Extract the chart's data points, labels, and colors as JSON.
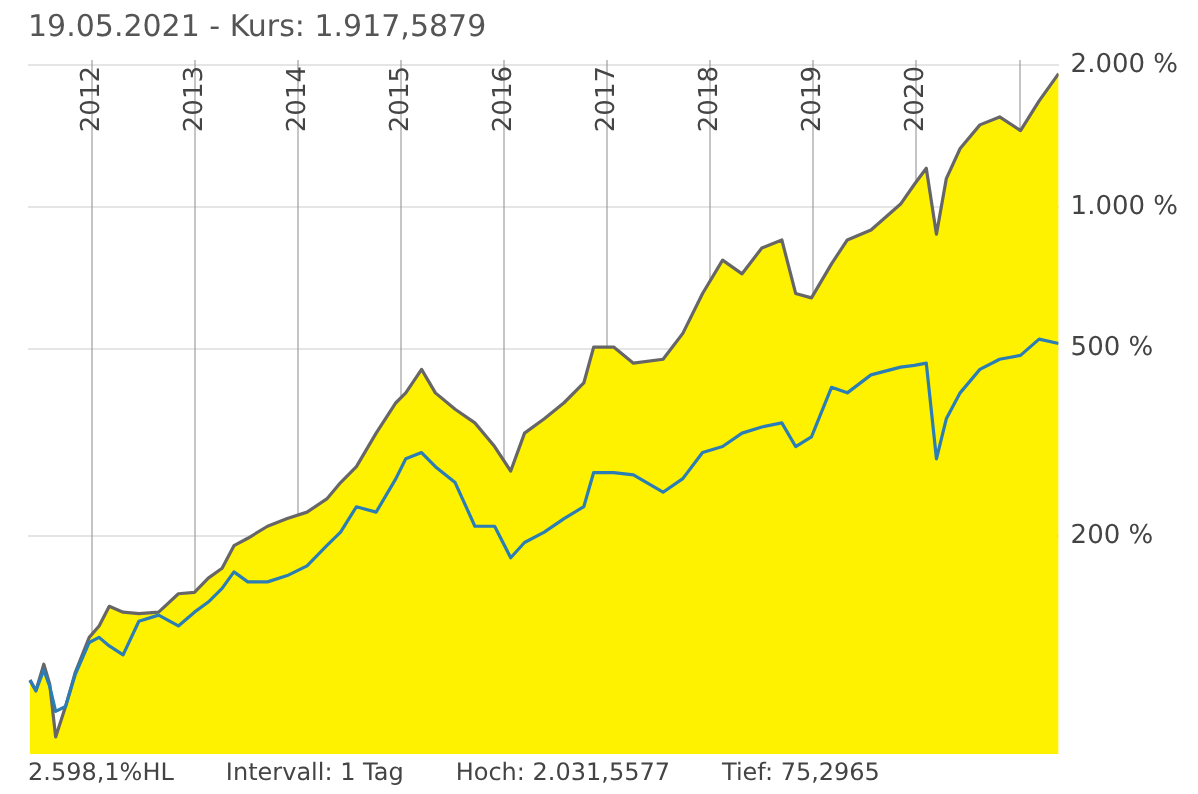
{
  "chart_data": {
    "type": "line",
    "title": "19.05.2021  -  Kurs: 1.917,5879",
    "annotations": [
      "2.598,1%HL",
      "Intervall: 1 Tag",
      "Hoch: 2.031,5577",
      "Tief: 75,2965"
    ],
    "x": [
      "2011-05-26",
      "2011-06-16",
      "2011-07-14",
      "2011-08-04",
      "2011-08-25",
      "2011-09-29",
      "2011-11-03",
      "2011-12-22",
      "2012-01-26",
      "2012-03-02",
      "2012-04-20",
      "2012-06-15",
      "2012-08-24",
      "2012-11-02",
      "2012-12-29",
      "2013-02-16",
      "2013-04-06",
      "2013-05-18",
      "2013-07-06",
      "2013-09-14",
      "2013-11-23",
      "2014-02-01",
      "2014-04-12",
      "2014-05-31",
      "2014-07-26",
      "2014-10-04",
      "2014-12-13",
      "2015-01-17",
      "2015-03-14",
      "2015-05-02",
      "2015-07-11",
      "2015-09-19",
      "2015-11-28",
      "2016-01-24",
      "2016-03-13",
      "2016-05-22",
      "2016-07-31",
      "2016-10-09",
      "2016-11-13",
      "2017-01-23",
      "2017-04-03",
      "2017-07-17",
      "2017-09-25",
      "2017-12-04",
      "2018-02-13",
      "2018-04-23",
      "2018-07-02",
      "2018-09-11",
      "2018-10-30",
      "2018-12-25",
      "2019-03-06",
      "2019-05-01",
      "2019-07-24",
      "2019-11-06",
      "2019-12-25",
      "2020-02-05",
      "2020-03-12",
      "2020-04-16",
      "2020-06-04",
      "2020-08-13",
      "2020-10-22",
      "2021-01-04",
      "2021-03-11",
      "2021-05-19"
    ],
    "series": [
      {
        "type": "area",
        "color": "#666666",
        "values": [
          99,
          94,
          107,
          97,
          75,
          87,
          103,
          122,
          129,
          142,
          138,
          137,
          138,
          151,
          152,
          163,
          171,
          191,
          198,
          210,
          218,
          225,
          240,
          260,
          281,
          331,
          384,
          403,
          452,
          403,
          372,
          348,
          310,
          275,
          331,
          355,
          384,
          423,
          504,
          504,
          466,
          475,
          539,
          655,
          771,
          721,
          818,
          851,
          655,
          641,
          757,
          851,
          893,
          1014,
          1117,
          1208,
          875,
          1148,
          1330,
          1493,
          1552,
          1452,
          1679,
          1918
        ]
      },
      {
        "type": "line",
        "color": "#2a7db5",
        "values": [
          99,
          94,
          104,
          96,
          85,
          87,
          102,
          119,
          122,
          117,
          112,
          132,
          136,
          129,
          138,
          145,
          155,
          168,
          160,
          160,
          165,
          173,
          191,
          204,
          231,
          225,
          265,
          292,
          301,
          281,
          260,
          210,
          210,
          180,
          194,
          204,
          218,
          231,
          273,
          273,
          270,
          248,
          265,
          301,
          310,
          331,
          341,
          348,
          310,
          325,
          414,
          403,
          440,
          457,
          461,
          466,
          292,
          355,
          403,
          452,
          475,
          484,
          524,
          513
        ]
      }
    ],
    "xlim": [
      "2011-05-19",
      "2021-05-19"
    ],
    "xticks": [
      {
        "value": "2012",
        "label": "2012"
      },
      {
        "value": "2013",
        "label": "2013"
      },
      {
        "value": "2014",
        "label": "2014"
      },
      {
        "value": "2015",
        "label": "2015"
      },
      {
        "value": "2016",
        "label": "2016"
      },
      {
        "value": "2017",
        "label": "2017"
      },
      {
        "value": "2018",
        "label": "2018"
      },
      {
        "value": "2019",
        "label": "2019"
      },
      {
        "value": "2020",
        "label": "2020"
      },
      {
        "value": "2021",
        "label": null
      }
    ],
    "ylim": [
      69,
      2050
    ],
    "yticks": [
      {
        "value": 200,
        "label": "200 %"
      },
      {
        "value": 500,
        "label": "500 %"
      },
      {
        "value": 1000,
        "label": "1.000 %"
      },
      {
        "value": 2000,
        "label": "2.000 %"
      }
    ],
    "log": true,
    "grid": true,
    "legend": false
  }
}
